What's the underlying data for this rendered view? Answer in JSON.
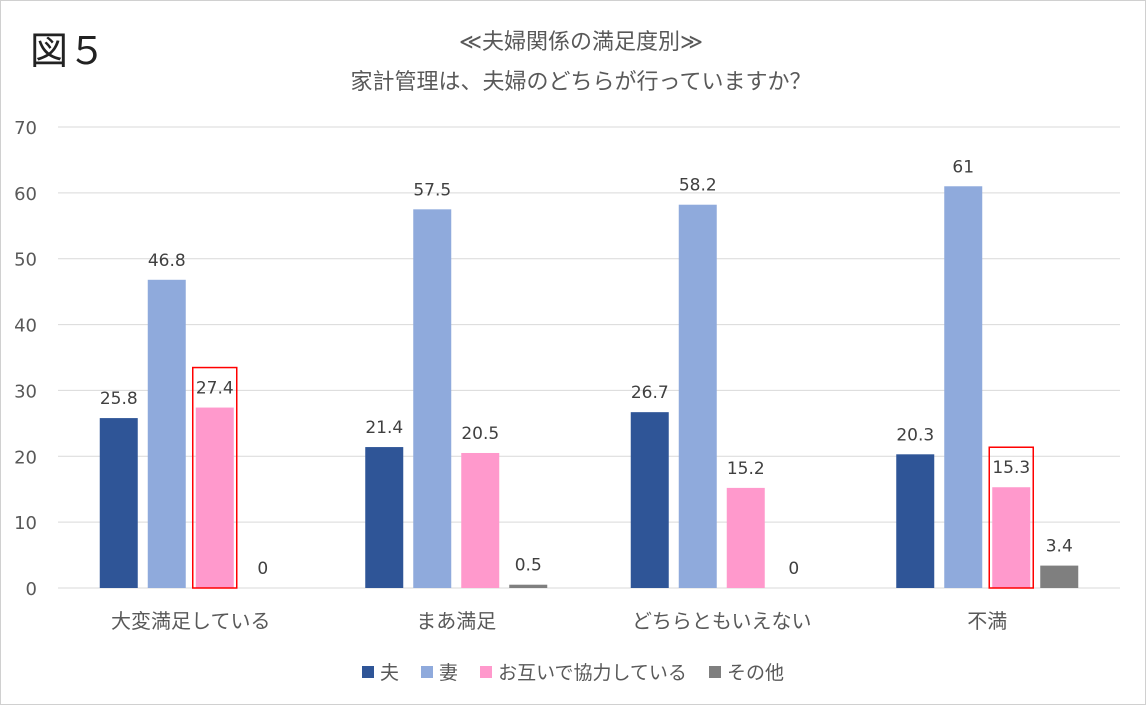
{
  "figure_label": "図５",
  "chart_data": {
    "type": "bar",
    "title": "≪夫婦関係の満足度別≫",
    "subtitle": "家計管理は、夫婦のどちらが行っていますか？",
    "categories": [
      "大変満足している",
      "まあ満足",
      "どちらともいえない",
      "不満"
    ],
    "series": [
      {
        "name": "夫",
        "color": "#2f5597",
        "values": [
          25.8,
          21.4,
          26.7,
          20.3
        ],
        "labels": [
          "25.8",
          "21.4",
          "26.7",
          "20.3"
        ]
      },
      {
        "name": "妻",
        "color": "#8faadc",
        "values": [
          46.8,
          57.5,
          58.2,
          61
        ],
        "labels": [
          "46.8",
          "57.5",
          "58.2",
          "61"
        ]
      },
      {
        "name": "お互いで協力している",
        "color": "#ff99cc",
        "values": [
          27.4,
          20.5,
          15.2,
          15.3
        ],
        "labels": [
          "27.4",
          "20.5",
          "15.2",
          "15.3"
        ]
      },
      {
        "name": "その他",
        "color": "#7f7f7f",
        "values": [
          0,
          0.5,
          0,
          3.4
        ],
        "labels": [
          "0",
          "0.5",
          "0",
          "3.4"
        ]
      }
    ],
    "ylim": [
      0,
      70
    ],
    "yticks": [
      "0",
      "10",
      "20",
      "30",
      "40",
      "50",
      "60",
      "70"
    ],
    "grid": true,
    "legend_position": "bottom",
    "highlighted": [
      {
        "category": "大変満足している",
        "series": "お互いで協力している",
        "color": "#ff0000"
      },
      {
        "category": "不満",
        "series": "お互いで協力している",
        "color": "#ff0000"
      }
    ]
  }
}
